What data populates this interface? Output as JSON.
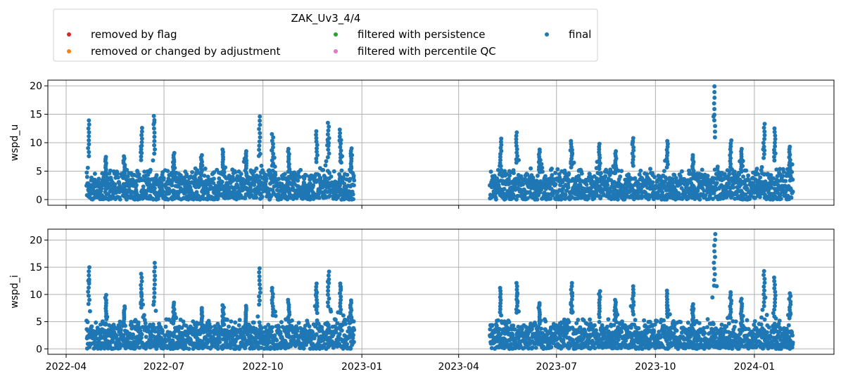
{
  "chart_data": {
    "type": "scatter",
    "legend": {
      "title": "ZAK_Uv3_4/4",
      "placement": "top-left",
      "entries": [
        {
          "label": "removed by flag",
          "color": "#d62728"
        },
        {
          "label": "filtered with persistence",
          "color": "#2ca02c"
        },
        {
          "label": "final",
          "color": "#1f77b4"
        },
        {
          "label": "removed or changed by adjustment",
          "color": "#ff7f0e"
        },
        {
          "label": "filtered with percentile QC",
          "color": "#e377c2"
        }
      ]
    },
    "x_ticks": [
      "2022-04",
      "2022-07",
      "2022-10",
      "2023-01",
      "2023-04",
      "2023-07",
      "2023-10",
      "2024-01"
    ],
    "xlim": [
      "2022-03-15",
      "2024-03-15"
    ],
    "grid": true,
    "panels": [
      {
        "ylabel": "wspd_u",
        "ylim": [
          -1,
          21
        ],
        "y_ticks": [
          0,
          5,
          10,
          15,
          20
        ],
        "series": [
          {
            "color": "#1f77b4",
            "marker": "circle",
            "segments": [
              {
                "start": "2022-04-20",
                "end": "2022-12-25"
              },
              {
                "start": "2023-04-30",
                "end": "2024-02-06"
              }
            ],
            "spikes": [
              {
                "x": "2022-04-22",
                "y": 13.9
              },
              {
                "x": "2022-05-08",
                "y": 7.5
              },
              {
                "x": "2022-05-25",
                "y": 7.6
              },
              {
                "x": "2022-06-10",
                "y": 12.6
              },
              {
                "x": "2022-06-22",
                "y": 14.7
              },
              {
                "x": "2022-07-10",
                "y": 8.2
              },
              {
                "x": "2022-08-05",
                "y": 7.8
              },
              {
                "x": "2022-08-25",
                "y": 8.8
              },
              {
                "x": "2022-09-15",
                "y": 8.5
              },
              {
                "x": "2022-09-28",
                "y": 14.6
              },
              {
                "x": "2022-10-10",
                "y": 11.5
              },
              {
                "x": "2022-10-25",
                "y": 8.9
              },
              {
                "x": "2022-11-20",
                "y": 12.0
              },
              {
                "x": "2022-12-01",
                "y": 13.5
              },
              {
                "x": "2022-12-12",
                "y": 12.3
              },
              {
                "x": "2022-12-22",
                "y": 9.0
              },
              {
                "x": "2023-05-10",
                "y": 10.7
              },
              {
                "x": "2023-05-25",
                "y": 11.8
              },
              {
                "x": "2023-06-15",
                "y": 8.8
              },
              {
                "x": "2023-07-15",
                "y": 10.3
              },
              {
                "x": "2023-08-10",
                "y": 9.8
              },
              {
                "x": "2023-08-25",
                "y": 8.5
              },
              {
                "x": "2023-09-10",
                "y": 10.8
              },
              {
                "x": "2023-10-12",
                "y": 10.3
              },
              {
                "x": "2023-11-05",
                "y": 7.8
              },
              {
                "x": "2023-11-25",
                "y": 19.9
              },
              {
                "x": "2023-12-10",
                "y": 10.4
              },
              {
                "x": "2023-12-20",
                "y": 8.9
              },
              {
                "x": "2024-01-10",
                "y": 13.3
              },
              {
                "x": "2024-01-20",
                "y": 12.5
              },
              {
                "x": "2024-02-03",
                "y": 9.3
              }
            ]
          }
        ]
      },
      {
        "ylabel": "wspd_i",
        "ylim": [
          -1,
          22
        ],
        "y_ticks": [
          0,
          5,
          10,
          15,
          20
        ],
        "series": [
          {
            "color": "#1f77b4",
            "marker": "circle",
            "segments": [
              {
                "start": "2022-04-20",
                "end": "2022-12-25"
              },
              {
                "start": "2023-04-30",
                "end": "2024-02-06"
              }
            ],
            "spikes": [
              {
                "x": "2022-04-22",
                "y": 15.0
              },
              {
                "x": "2022-05-08",
                "y": 9.9
              },
              {
                "x": "2022-05-25",
                "y": 7.8
              },
              {
                "x": "2022-06-10",
                "y": 13.8
              },
              {
                "x": "2022-06-22",
                "y": 15.8
              },
              {
                "x": "2022-07-10",
                "y": 8.5
              },
              {
                "x": "2022-08-05",
                "y": 7.5
              },
              {
                "x": "2022-08-25",
                "y": 8.0
              },
              {
                "x": "2022-09-15",
                "y": 7.9
              },
              {
                "x": "2022-09-28",
                "y": 14.8
              },
              {
                "x": "2022-10-10",
                "y": 11.2
              },
              {
                "x": "2022-10-25",
                "y": 9.0
              },
              {
                "x": "2022-11-20",
                "y": 12.0
              },
              {
                "x": "2022-12-01",
                "y": 14.2
              },
              {
                "x": "2022-12-12",
                "y": 12.0
              },
              {
                "x": "2022-12-22",
                "y": 8.9
              },
              {
                "x": "2023-05-10",
                "y": 11.2
              },
              {
                "x": "2023-05-25",
                "y": 12.1
              },
              {
                "x": "2023-06-15",
                "y": 8.4
              },
              {
                "x": "2023-07-15",
                "y": 12.1
              },
              {
                "x": "2023-08-10",
                "y": 10.6
              },
              {
                "x": "2023-08-25",
                "y": 9.0
              },
              {
                "x": "2023-09-10",
                "y": 11.5
              },
              {
                "x": "2023-10-12",
                "y": 10.7
              },
              {
                "x": "2023-11-05",
                "y": 8.2
              },
              {
                "x": "2023-11-25",
                "y": 21.1
              },
              {
                "x": "2023-12-10",
                "y": 10.4
              },
              {
                "x": "2023-12-20",
                "y": 9.2
              },
              {
                "x": "2024-01-10",
                "y": 14.3
              },
              {
                "x": "2024-01-20",
                "y": 13.1
              },
              {
                "x": "2024-02-03",
                "y": 10.2
              }
            ]
          }
        ]
      }
    ]
  }
}
